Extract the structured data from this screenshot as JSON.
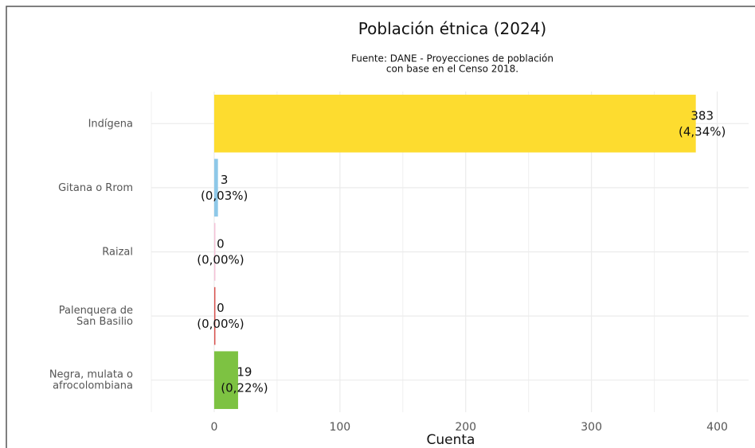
{
  "chart_data": {
    "type": "barh",
    "title": "Población étnica (2024)",
    "subtitle": "Fuente: DANE - Proyecciones de población\ncon base en el Censo 2018.",
    "xlabel": "Cuenta",
    "categories": [
      "Indígena",
      "Gitana o Rrom",
      "Raizal",
      "Palenquera de\nSan Basilio",
      "Negra, mulata o\nafrocolombiana"
    ],
    "values": [
      383,
      3,
      0,
      0,
      19
    ],
    "value_labels": [
      "383\n(4,34%)",
      "3\n(0,03%)",
      "0\n(0,00%)",
      "0\n(0,00%)",
      "19\n(0,22%)"
    ],
    "colors": [
      "#fddc2f",
      "#8ec8e8",
      "#f4c2d7",
      "#d9534f",
      "#7dc242"
    ],
    "xlim": [
      -50,
      425
    ],
    "xticks": [
      0,
      100,
      200,
      300,
      400
    ],
    "xminor": [
      -50,
      50,
      150,
      250,
      350
    ],
    "grid": true
  }
}
